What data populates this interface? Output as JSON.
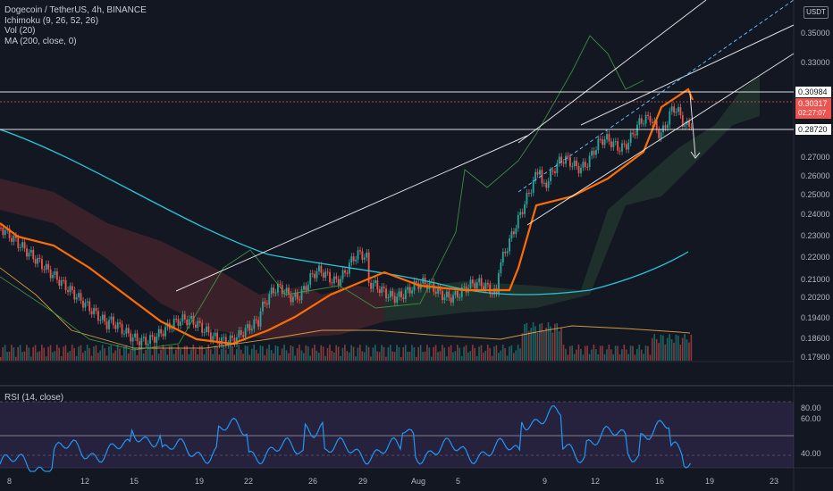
{
  "legend": {
    "symbol": "Dogecoin / TetherUS, 4h, BINANCE",
    "ichimoku": "Ichimoku (9, 26, 52, 26)",
    "vol": "Vol (20)",
    "ma": "MA (200, close, 0)"
  },
  "rsi_legend": "RSI (14, close)",
  "currency_button": "USDT",
  "price_axis": [
    "0.35000",
    "0.33000",
    "0.27000",
    "0.26000",
    "0.25000",
    "0.24000",
    "0.23000",
    "0.22000",
    "0.21000",
    "0.20200",
    "0.19400",
    "0.18600",
    "0.17900"
  ],
  "price_tags": {
    "level_high": "0.30984",
    "current_price": "0.30317",
    "countdown": "02:27:07",
    "level_low": "0.28720"
  },
  "rsi_axis": [
    "80.00",
    "60.00",
    "40.00"
  ],
  "time_axis": [
    "8",
    "12",
    "15",
    "19",
    "22",
    "26",
    "29",
    "Aug",
    "5",
    "9",
    "12",
    "16",
    "19",
    "23"
  ],
  "colors": {
    "background": "#131722",
    "candle_up": "#26a69a",
    "candle_down": "#ef5350",
    "kijun": "#ff6d00",
    "ma200": "#26c6da",
    "rsi_line": "#2196f3",
    "rsi_band": "#7e57c2",
    "price_tag": "#ef5350"
  }
}
